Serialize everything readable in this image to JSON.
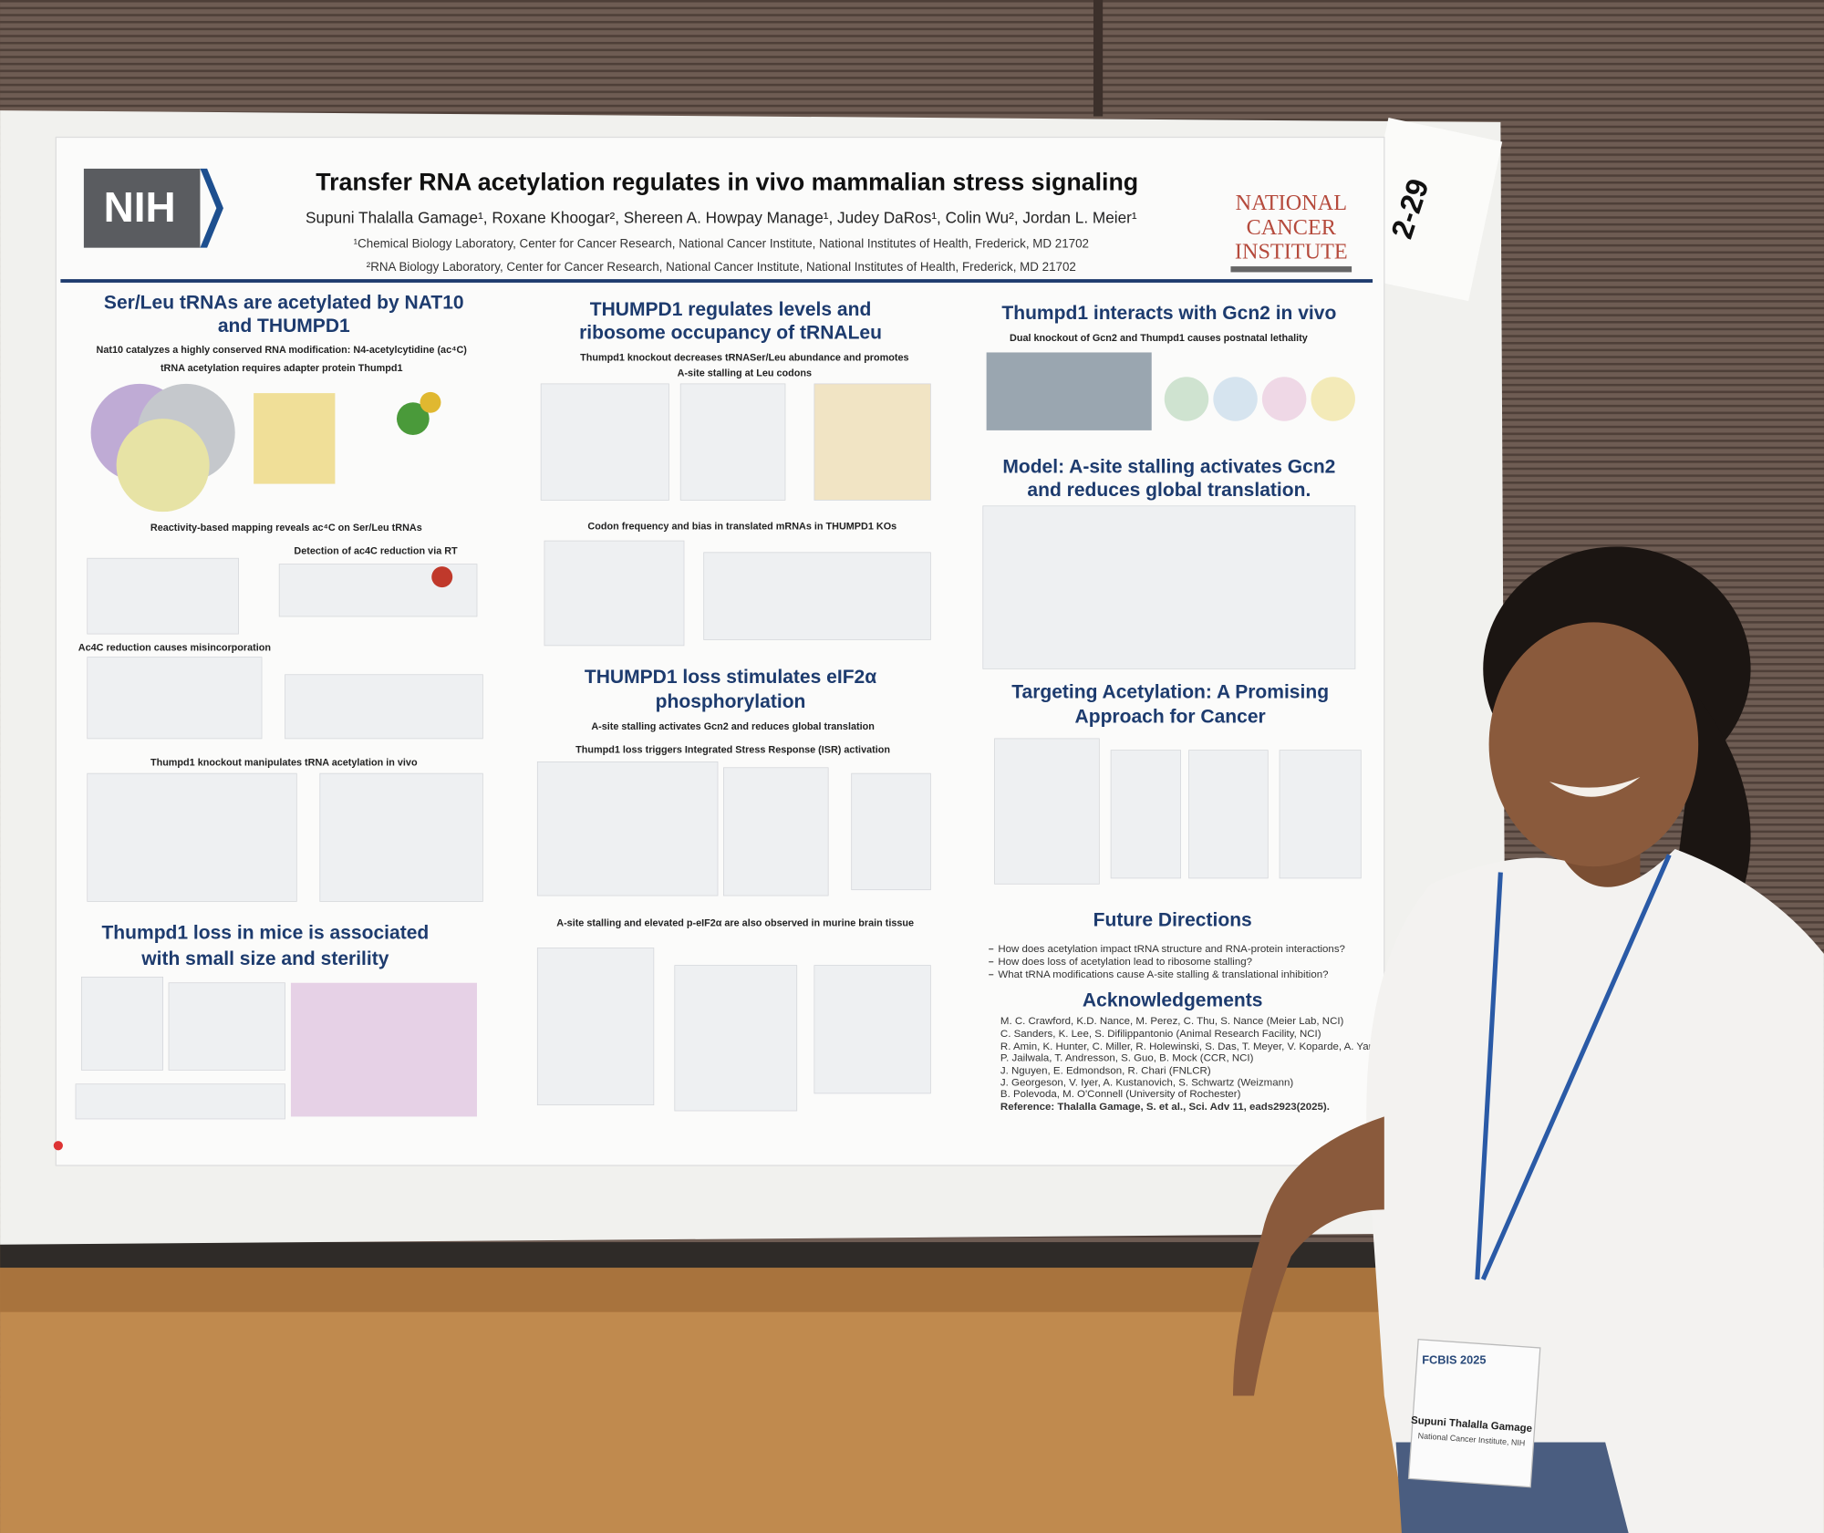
{
  "poster": {
    "number": "2-29",
    "logo": "NIH",
    "cancer_logo": [
      "NATIONAL",
      "CANCER",
      "INSTITUTE"
    ],
    "title": "Transfer RNA acetylation regulates in vivo mammalian stress signaling",
    "authors": "Supuni Thalalla Gamage¹, Roxane Khoogar², Shereen A. Howpay Manage¹, Judey DaRos¹, Colin Wu², Jordan L. Meier¹",
    "affiliations": [
      "¹Chemical Biology Laboratory, Center for Cancer Research, National Cancer Institute, National Institutes of Health, Frederick, MD 21702",
      "²RNA Biology Laboratory, Center for Cancer Research, National Cancer Institute, National Institutes of Health, Frederick, MD 21702"
    ]
  },
  "sections": [
    {
      "heading": [
        "Ser/Leu tRNAs are acetylated by NAT10",
        "and THUMPD1"
      ],
      "lines": [
        "Nat10 catalyzes a highly conserved RNA modification: N4-acetylcytidine (ac⁴C)",
        "tRNA acetylation requires adapter protein Thumpd1",
        "Reactivity-based mapping reveals ac⁴C on Ser/Leu tRNAs",
        "Detection of ac4C reduction via RT",
        "Ac4C reduction causes misincorporation",
        "Thumpd1 knockout manipulates tRNA acetylation in vivo"
      ]
    },
    {
      "heading": [
        "Thumpd1 loss in mice is associated",
        "with small size and sterility"
      ],
      "lines": []
    },
    {
      "heading": [
        "THUMPD1 regulates levels and",
        "ribosome occupancy of tRNALeu"
      ],
      "lines": [
        "Thumpd1 knockout decreases tRNASer/Leu abundance and promotes",
        "A-site stalling at Leu codons",
        "Codon frequency and bias in translated mRNAs in THUMPD1 KOs"
      ]
    },
    {
      "heading": [
        "THUMPD1 loss stimulates eIF2α",
        "phosphorylation"
      ],
      "lines": [
        "A-site stalling activates Gcn2 and reduces global translation",
        "Thumpd1 loss triggers Integrated Stress Response (ISR) activation",
        "A-site stalling and elevated p-eIF2α are also observed in murine brain tissue"
      ]
    },
    {
      "heading": [
        "Thumpd1 interacts with Gcn2 in vivo"
      ],
      "lines": [
        "Dual knockout of Gcn2 and Thumpd1 causes postnatal lethality"
      ]
    },
    {
      "heading": [
        "Model: A-site stalling activates Gcn2",
        "and reduces global translation."
      ],
      "lines": []
    },
    {
      "heading": [
        "Targeting Acetylation: A Promising",
        "Approach for Cancer"
      ],
      "lines": []
    }
  ],
  "future_directions": {
    "heading": "Future Directions",
    "items": [
      "How does acetylation impact tRNA structure and RNA-protein interactions?",
      "How does loss of acetylation lead to ribosome stalling?",
      "What tRNA modifications cause A-site stalling & translational inhibition?"
    ]
  },
  "acknowledgements": {
    "heading": "Acknowledgements",
    "items": [
      "M. C. Crawford, K.D. Nance, M. Perez, C. Thu, S. Nance (Meier Lab, NCI)",
      "C. Sanders, K. Lee, S. Difilippantonio (Animal Research Facility, NCI)",
      "R. Amin, K. Hunter, C. Miller, R. Holewinski, S. Das, T. Meyer, V. Koparde, A. Yang,",
      "P. Jailwala, T. Andresson, S. Guo, B. Mock (CCR, NCI)",
      "J. Nguyen, E. Edmondson, R. Chari (FNLCR)",
      "J. Georgeson, V. Iyer, A. Kustanovich, S. Schwartz (Weizmann)",
      "B. Polevoda, M. O'Connell (University of Rochester)",
      "Reference: Thalalla Gamage, S. et al., Sci. Adv 11, eads2923(2025)."
    ]
  },
  "badge": {
    "event": "FCBIS 2025",
    "name": "Supuni Thalalla Gamage",
    "affiliation": "National Cancer Institute, NIH"
  }
}
